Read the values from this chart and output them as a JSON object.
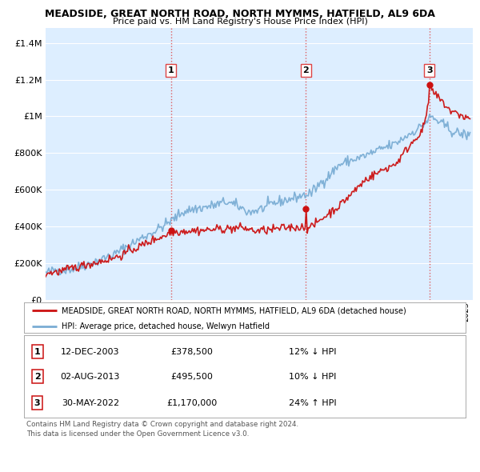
{
  "title": "MEADSIDE, GREAT NORTH ROAD, NORTH MYMMS, HATFIELD, AL9 6DA",
  "subtitle": "Price paid vs. HM Land Registry's House Price Index (HPI)",
  "ytick_values": [
    0,
    200000,
    400000,
    600000,
    800000,
    1000000,
    1200000,
    1400000
  ],
  "ytick_labels": [
    "£0",
    "£200K",
    "£400K",
    "£600K",
    "£800K",
    "£1M",
    "£1.2M",
    "£1.4M"
  ],
  "ylim": [
    0,
    1480000
  ],
  "xlim_start": 1995.0,
  "xlim_end": 2025.5,
  "plot_bg_color": "#ddeeff",
  "grid_color": "#ffffff",
  "sale_dates": [
    2003.95,
    2013.58,
    2022.41
  ],
  "sale_prices": [
    378500,
    495500,
    1170000
  ],
  "sale_labels": [
    "1",
    "2",
    "3"
  ],
  "vline_color": "#dd4444",
  "legend_label_red": "MEADSIDE, GREAT NORTH ROAD, NORTH MYMMS, HATFIELD, AL9 6DA (detached house)",
  "legend_label_blue": "HPI: Average price, detached house, Welwyn Hatfield",
  "table_data": [
    [
      "1",
      "12-DEC-2003",
      "£378,500",
      "12% ↓ HPI"
    ],
    [
      "2",
      "02-AUG-2013",
      "£495,500",
      "10% ↓ HPI"
    ],
    [
      "3",
      "30-MAY-2022",
      "£1,170,000",
      "24% ↑ HPI"
    ]
  ],
  "footer": "Contains HM Land Registry data © Crown copyright and database right 2024.\nThis data is licensed under the Open Government Licence v3.0.",
  "red_line_color": "#cc1111",
  "blue_line_color": "#7aadd4"
}
